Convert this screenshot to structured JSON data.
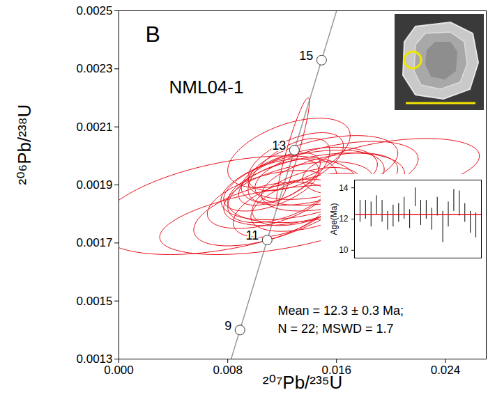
{
  "chart_data": {
    "type": "concordia",
    "panel_label": "B",
    "sample": "NML04-1",
    "x_label": "²⁰⁷Pb/²³⁵U",
    "y_label": "²⁰⁶Pb/²³⁸U",
    "xlim": [
      0,
      0.027
    ],
    "xticks": [
      {
        "value": 0,
        "label": "0.000"
      },
      0.008,
      0.016,
      0.024
    ],
    "ylim": [
      0.0013,
      0.0025
    ],
    "yticks": [
      0.0013,
      0.0015,
      0.0017,
      0.0019,
      0.0021,
      0.0023,
      0.0025
    ],
    "ellipses": {
      "color": "#e8101c",
      "x": [
        0.008,
        0.0115,
        0.0128,
        0.0125,
        0.014,
        0.012,
        0.0135,
        0.011,
        0.015,
        0.013,
        0.0118,
        0.0145,
        0.016,
        0.02,
        0.0105,
        0.0138,
        0.0125,
        0.0155,
        0.0112,
        0.0142,
        0.0132,
        0.0122
      ],
      "y": [
        0.00183,
        0.00178,
        0.00202,
        0.00195,
        0.00193,
        0.00188,
        0.0019,
        0.00185,
        0.00196,
        0.00198,
        0.00192,
        0.00189,
        0.00194,
        0.00196,
        0.0018,
        0.00186,
        0.00201,
        0.00191,
        0.0019,
        0.00184,
        0.00187,
        0.00182
      ],
      "x_err": [
        0.0095,
        0.0085,
        0.0012,
        0.003,
        0.005,
        0.004,
        0.006,
        0.0045,
        0.0055,
        0.0035,
        0.003,
        0.0065,
        0.006,
        0.0065,
        0.005,
        0.004,
        0.0045,
        0.005,
        0.0035,
        0.0045,
        0.0055,
        0.0038
      ],
      "y_err": [
        0.00017,
        0.00012,
        0.00018,
        0.00011,
        0.0001,
        0.00011,
        0.00012,
        0.0001,
        0.00011,
        0.0001,
        9e-05,
        0.00012,
        0.00011,
        0.0001,
        0.00011,
        0.0001,
        0.00012,
        0.0001,
        9e-05,
        0.0001,
        0.00011,
        0.0001
      ],
      "rho": [
        0.45,
        0.5,
        0.92,
        0.6,
        0.4,
        0.5,
        0.45,
        0.5,
        0.45,
        0.55,
        0.6,
        0.4,
        0.45,
        0.4,
        0.5,
        0.5,
        0.5,
        0.45,
        0.55,
        0.5,
        0.45,
        0.5
      ]
    },
    "concordia": {
      "color": "#999999",
      "x": [
        0.00825,
        0.0089,
        0.0109,
        0.0129,
        0.0149,
        0.016
      ],
      "y": [
        0.0013,
        0.0014,
        0.00171,
        0.00202,
        0.00233,
        0.0025
      ],
      "ages": [
        null,
        9,
        11,
        13,
        15,
        null
      ]
    },
    "annotations": [
      "Mean = 12.3 ± 0.3 Ma;",
      "N = 22; MSWD = 1.7"
    ],
    "inset": {
      "type": "weighted_mean",
      "y_label": "Age(Ma)",
      "ylim": [
        9.5,
        14.5
      ],
      "yticks": [
        10,
        12,
        14
      ],
      "values": [
        12.5,
        12.6,
        12.3,
        12.9,
        12.5,
        11.9,
        12.2,
        12.4,
        12.7,
        12.0,
        13.4,
        12.4,
        12.6,
        12.0,
        12.8,
        11.5,
        12.3,
        13.2,
        13.0,
        12.4,
        11.8,
        11.6
      ],
      "errors": [
        0.7,
        0.6,
        0.8,
        0.6,
        0.7,
        0.6,
        0.7,
        0.6,
        0.7,
        0.6,
        0.6,
        0.8,
        0.6,
        0.7,
        0.6,
        1.0,
        0.8,
        0.7,
        0.8,
        0.6,
        0.7,
        0.8
      ],
      "mean": 12.3,
      "color": "#e8101c"
    }
  }
}
